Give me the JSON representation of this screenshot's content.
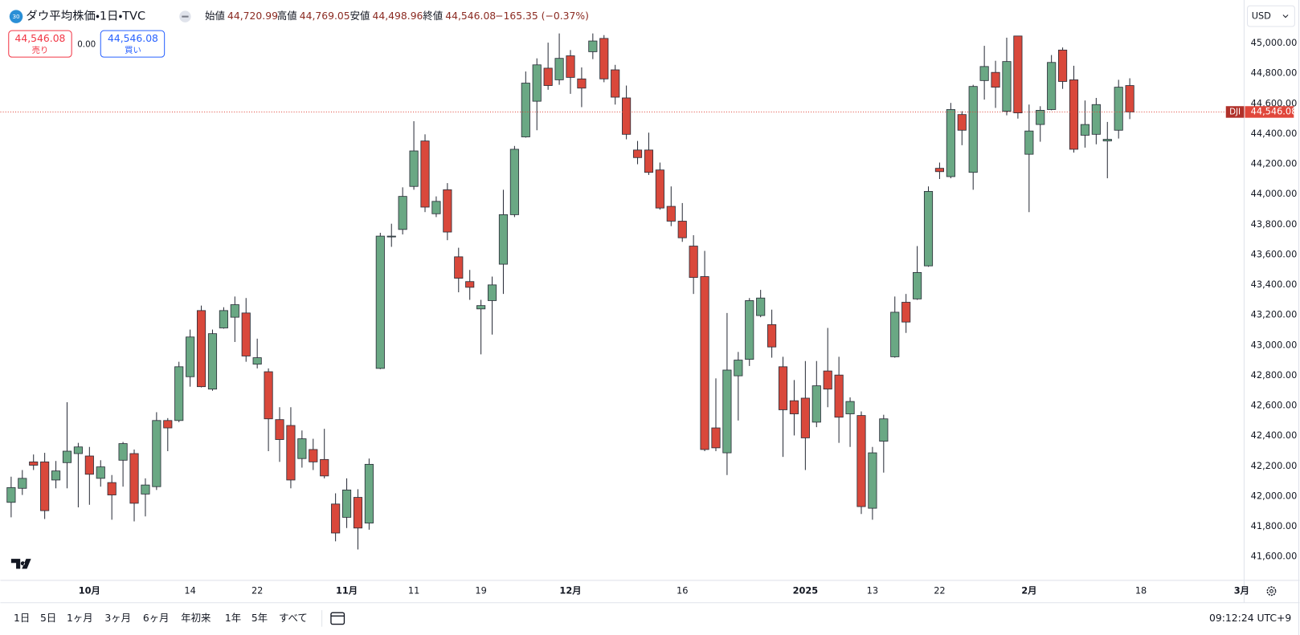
{
  "header": {
    "badge": "30",
    "symbol": "ダウ平均株価・1日・TVC",
    "ohlc": [
      {
        "label": "始値",
        "value": "44,720.99"
      },
      {
        "label": "高値",
        "value": "44,769.05"
      },
      {
        "label": "安値",
        "value": "44,498.96"
      },
      {
        "label": "終値",
        "value": "44,546.08"
      }
    ],
    "change": "−165.35 (−0.37%)"
  },
  "trade": {
    "sell_price": "44,546.08",
    "sell_label": "売り",
    "spread": "0.00",
    "buy_price": "44,546.08",
    "buy_label": "買い"
  },
  "currency": "USD",
  "chart_data": {
    "type": "candlestick",
    "categories": [
      null,
      null,
      null,
      null,
      null,
      null,
      null,
      "10月",
      null,
      null,
      null,
      null,
      null,
      null,
      null,
      null,
      "14",
      null,
      null,
      null,
      null,
      null,
      "22",
      null,
      null,
      null,
      null,
      null,
      null,
      null,
      "11月",
      null,
      null,
      null,
      null,
      null,
      "11",
      null,
      null,
      null,
      null,
      null,
      "19",
      null,
      null,
      null,
      null,
      null,
      null,
      null,
      "12月",
      null,
      null,
      null,
      null,
      null,
      null,
      null,
      null,
      null,
      "16",
      null,
      null,
      null,
      null,
      null,
      null,
      null,
      null,
      null,
      null,
      "2025",
      null,
      null,
      null,
      null,
      null,
      "13",
      null,
      null,
      null,
      null,
      null,
      "22",
      null,
      null,
      null,
      null,
      null,
      null,
      null,
      "2月",
      null,
      null,
      null,
      null,
      null,
      null,
      null,
      null,
      null,
      "18",
      null,
      null,
      null,
      null,
      null,
      null,
      null,
      null,
      "3月"
    ],
    "open": [
      41961,
      42054,
      42229,
      42229,
      42109,
      42224,
      42284,
      42268,
      42120,
      42092,
      42240,
      42284,
      42016,
      42065,
      42503,
      42503,
      42793,
      43231,
      42711,
      43116,
      43187,
      43215,
      42876,
      42826,
      42509,
      42470,
      42251,
      42311,
      42245,
      41950,
      41862,
      41994,
      41824,
      42848,
      43719,
      43768,
      44053,
      44354,
      43872,
      44031,
      43587,
      43423,
      43242,
      43297,
      43538,
      43866,
      44381,
      44617,
      44836,
      44759,
      44918,
      44765,
      44945,
      45033,
      44825,
      44639,
      44294,
      44294,
      44162,
      43921,
      43823,
      43658,
      43456,
      42454,
      42289,
      42799,
      42908,
      43198,
      43138,
      42859,
      42634,
      42651,
      42492,
      42831,
      42804,
      42547,
      42536,
      41922,
      42366,
      42925,
      43286,
      43308,
      43527,
      44173,
      44118,
      44529,
      44146,
      44754,
      44808,
      44551,
      45049,
      44266,
      44463,
      44562,
      44956,
      44759,
      44392,
      44398,
      44354,
      44425,
      44720.99,
      null,
      null,
      null,
      null,
      null,
      null,
      null,
      null,
      null,
      null
    ],
    "high": [
      42131,
      42175,
      42278,
      42289,
      42235,
      42624,
      42355,
      42328,
      42240,
      42142,
      42361,
      42311,
      42120,
      42558,
      42519,
      42892,
      43105,
      43264,
      43105,
      43253,
      43324,
      43314,
      43045,
      42848,
      42591,
      42591,
      42437,
      42382,
      42448,
      42021,
      42120,
      42048,
      42251,
      43746,
      43806,
      44047,
      44485,
      44398,
      43987,
      44075,
      43647,
      43500,
      43302,
      43456,
      44031,
      44321,
      44814,
      44901,
      45005,
      45066,
      44956,
      44841,
      45066,
      45055,
      44858,
      44721,
      44354,
      44409,
      44211,
      44053,
      43943,
      43730,
      43626,
      42782,
      43215,
      42957,
      43314,
      43368,
      43237,
      42925,
      42771,
      42897,
      42897,
      43116,
      42925,
      42656,
      42563,
      42328,
      42541,
      43324,
      43341,
      43658,
      44053,
      44211,
      44606,
      44551,
      44726,
      44984,
      44885,
      45038,
      45049,
      44595,
      44584,
      44923,
      44973,
      44852,
      44622,
      44639,
      44480,
      44759,
      44769.05,
      null,
      null,
      null,
      null,
      null,
      null,
      null,
      null,
      null,
      null
    ],
    "low": [
      41862,
      42010,
      42175,
      41851,
      42054,
      42054,
      41928,
      41945,
      42065,
      41846,
      42065,
      41835,
      41868,
      42043,
      42300,
      42492,
      42727,
      42722,
      42700,
      43111,
      43023,
      42892,
      42848,
      42300,
      42229,
      42054,
      42191,
      42175,
      42120,
      41703,
      41791,
      41649,
      41780,
      42843,
      43653,
      43735,
      44031,
      43883,
      43850,
      43697,
      43352,
      43302,
      42941,
      43072,
      43341,
      43850,
      44376,
      44425,
      44693,
      44726,
      44666,
      44578,
      44896,
      44743,
      44595,
      44365,
      44200,
      44129,
      43899,
      43790,
      43686,
      43341,
      42300,
      42300,
      42142,
      42503,
      42864,
      43187,
      42919,
      42262,
      42404,
      42175,
      42459,
      42591,
      42355,
      42328,
      41884,
      41846,
      42158,
      42919,
      43083,
      43302,
      43521,
      44102,
      44107,
      44326,
      44031,
      44628,
      44573,
      44524,
      44502,
      43883,
      44349,
      44557,
      44699,
      44277,
      44310,
      44332,
      44107,
      44370,
      44498.96,
      null,
      null,
      null,
      null,
      null,
      null,
      null,
      null,
      null,
      null
    ],
    "close": [
      42059,
      42120,
      42207,
      41906,
      42169,
      42300,
      42328,
      42147,
      42196,
      42010,
      42350,
      41955,
      42076,
      42503,
      42454,
      42859,
      43056,
      42727,
      43078,
      43231,
      43270,
      42930,
      42919,
      42514,
      42377,
      42109,
      42382,
      42229,
      42136,
      41758,
      42043,
      41791,
      42213,
      43724,
      43724,
      43987,
      44288,
      43916,
      43954,
      43751,
      43445,
      43385,
      43264,
      43401,
      43866,
      44299,
      44737,
      44858,
      44721,
      44901,
      44775,
      44704,
      45016,
      44765,
      44644,
      44398,
      44244,
      44146,
      43910,
      43823,
      43713,
      43450,
      42311,
      42322,
      42837,
      42903,
      43297,
      43314,
      42990,
      42574,
      42547,
      42388,
      42733,
      42711,
      42525,
      42629,
      41933,
      42289,
      42514,
      43220,
      43155,
      43483,
      44020,
      44151,
      44562,
      44425,
      44715,
      44847,
      44710,
      44880,
      44540,
      44420,
      44557,
      44874,
      44748,
      44299,
      44463,
      44595,
      44365,
      44710,
      44546.08,
      null,
      null,
      null,
      null,
      null,
      null,
      null,
      null,
      null,
      null
    ],
    "up_color": "#6aa884",
    "down_color": "#d9483b",
    "ylim": [
      41450,
      45260
    ],
    "yticks": [
      {
        "value": 41600,
        "label": "41,600.00"
      },
      {
        "value": 41800,
        "label": "41,800.00"
      },
      {
        "value": 42000,
        "label": "42,000.00"
      },
      {
        "value": 42200,
        "label": "42,200.00"
      },
      {
        "value": 42400,
        "label": "42,400.00"
      },
      {
        "value": 42600,
        "label": "42,600.00"
      },
      {
        "value": 42800,
        "label": "42,800.00"
      },
      {
        "value": 43000,
        "label": "43,000.00"
      },
      {
        "value": 43200,
        "label": "43,200.00"
      },
      {
        "value": 43400,
        "label": "43,400.00"
      },
      {
        "value": 43600,
        "label": "43,600.00"
      },
      {
        "value": 43800,
        "label": "43,800.00"
      },
      {
        "value": 44000,
        "label": "44,000.00"
      },
      {
        "value": 44200,
        "label": "44,200.00"
      },
      {
        "value": 44400,
        "label": "44,400.00"
      },
      {
        "value": 44600,
        "label": "44,600.00"
      },
      {
        "value": 44800,
        "label": "44,800.00"
      },
      {
        "value": 45000,
        "label": "45,000.00"
      }
    ],
    "grid": false,
    "last_price": {
      "value": 44546.08,
      "label": "44,546.08",
      "symbol": "DJI",
      "color": "#e0473b"
    }
  },
  "toolbar": {
    "ranges": [
      "1日",
      "5日",
      "1ヶ月",
      "3ヶ月",
      "6ヶ月",
      "年初来",
      "1年",
      "5年",
      "すべて"
    ],
    "clock": "09:12:24 UTC+9"
  }
}
